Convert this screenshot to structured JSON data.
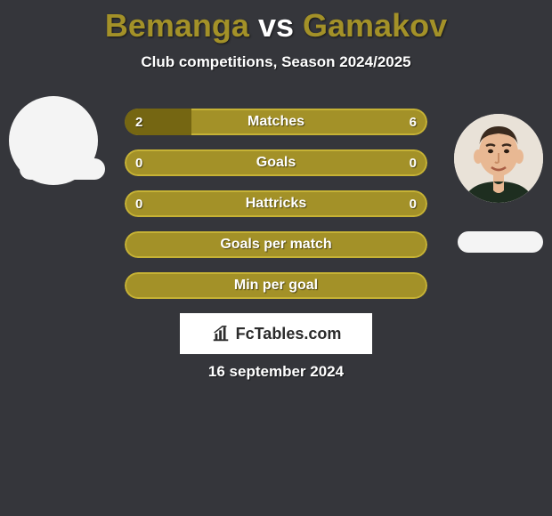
{
  "background_color": "#35363b",
  "title": {
    "player1": "Bemanga",
    "vs": "vs",
    "player2": "Gamakov",
    "player1_color": "#a39128",
    "vs_color": "#ffffff",
    "player2_color": "#a39128",
    "fontsize": 36
  },
  "subtitle": {
    "text": "Club competitions, Season 2024/2025",
    "color": "#ffffff",
    "fontsize": 17
  },
  "avatars": {
    "left_bg": "#f4f4f4",
    "right_bg": "#f0e6dc"
  },
  "bar_style": {
    "track_bg": "#a39128",
    "track_border": "#c6b235",
    "fill_left_color": "#756612",
    "fill_right_color": "#756612",
    "height": 30,
    "radius": 15,
    "label_color": "#ffffff",
    "value_color": "#ffffff",
    "label_fontsize": 16
  },
  "bars": [
    {
      "label": "Matches",
      "left": "2",
      "right": "6",
      "left_pct": 22,
      "right_pct": 0
    },
    {
      "label": "Goals",
      "left": "0",
      "right": "0",
      "left_pct": 0,
      "right_pct": 0
    },
    {
      "label": "Hattricks",
      "left": "0",
      "right": "0",
      "left_pct": 0,
      "right_pct": 0
    },
    {
      "label": "Goals per match",
      "left": "",
      "right": "",
      "left_pct": 0,
      "right_pct": 0
    },
    {
      "label": "Min per goal",
      "left": "",
      "right": "",
      "left_pct": 0,
      "right_pct": 0
    }
  ],
  "logo": {
    "text": "FcTables.com",
    "bg": "#ffffff",
    "color": "#2b2b2b"
  },
  "date": {
    "text": "16 september 2024",
    "color": "#ffffff"
  }
}
